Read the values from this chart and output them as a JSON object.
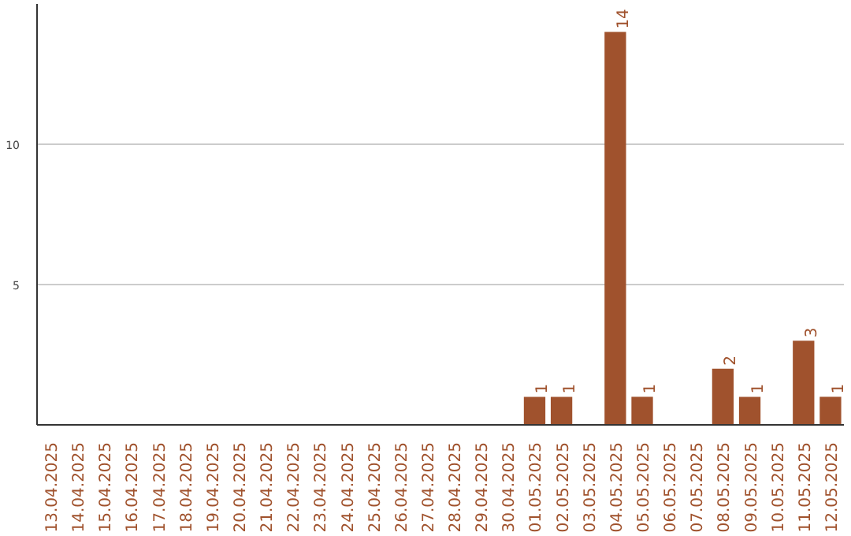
{
  "chart_data": {
    "type": "bar",
    "categories": [
      "13.04.2025",
      "14.04.2025",
      "15.04.2025",
      "16.04.2025",
      "17.04.2025",
      "18.04.2025",
      "19.04.2025",
      "20.04.2025",
      "21.04.2025",
      "22.04.2025",
      "23.04.2025",
      "24.04.2025",
      "25.04.2025",
      "26.04.2025",
      "27.04.2025",
      "28.04.2025",
      "29.04.2025",
      "30.04.2025",
      "01.05.2025",
      "02.05.2025",
      "03.05.2025",
      "04.05.2025",
      "05.05.2025",
      "06.05.2025",
      "07.05.2025",
      "08.05.2025",
      "09.05.2025",
      "10.05.2025",
      "11.05.2025",
      "12.05.2025"
    ],
    "values": [
      0,
      0,
      0,
      0,
      0,
      0,
      0,
      0,
      0,
      0,
      0,
      0,
      0,
      0,
      0,
      0,
      0,
      0,
      1,
      1,
      0,
      14,
      1,
      0,
      0,
      2,
      1,
      0,
      3,
      1
    ],
    "value_labels": [
      null,
      null,
      null,
      null,
      null,
      null,
      null,
      null,
      null,
      null,
      null,
      null,
      null,
      null,
      null,
      null,
      null,
      null,
      "1",
      "1",
      null,
      "14",
      "1",
      null,
      null,
      "2",
      "1",
      null,
      "3",
      "1"
    ],
    "color": "#a0522d",
    "ylim": [
      0,
      15
    ],
    "yticks": [
      5,
      10
    ],
    "grid": "y"
  }
}
